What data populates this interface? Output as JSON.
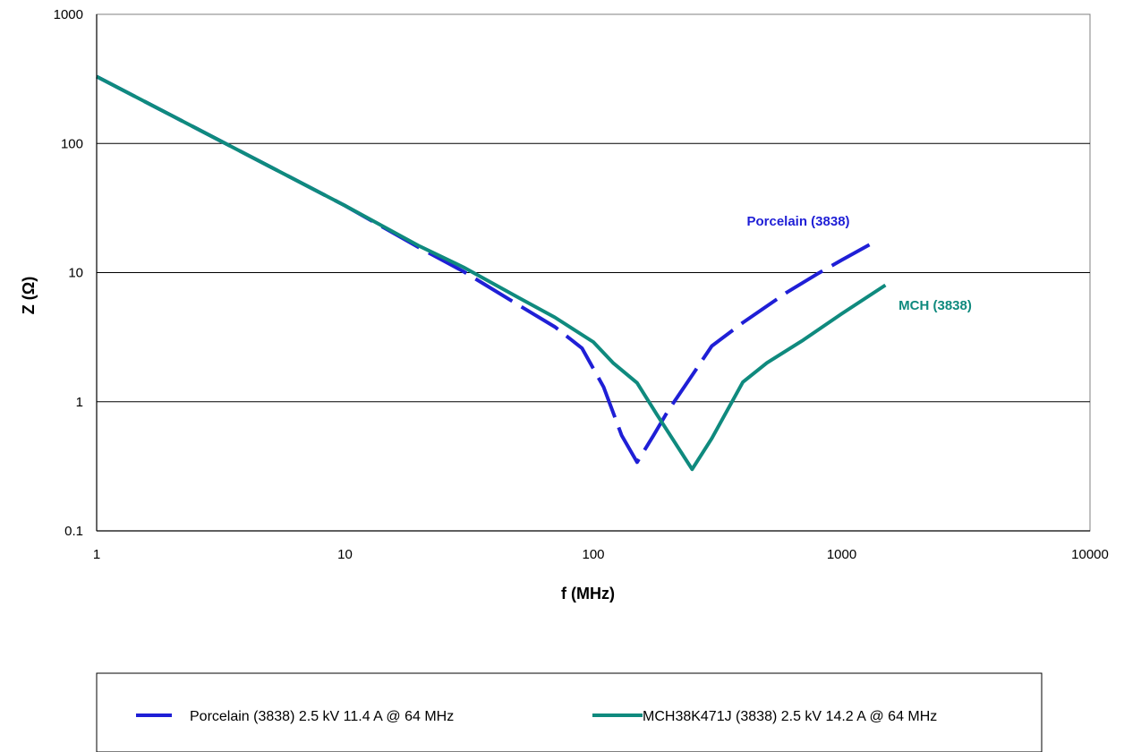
{
  "chart_data": {
    "type": "line",
    "xscale": "log",
    "yscale": "log",
    "xlim": [
      1,
      10000
    ],
    "ylim": [
      0.1,
      1000
    ],
    "xlabel": "f (MHz)",
    "ylabel": "Z (Ω)",
    "x_ticks": [
      "1",
      "10",
      "100",
      "1000",
      "10000"
    ],
    "y_ticks": [
      "0.1",
      "1",
      "10",
      "100",
      "1000"
    ],
    "grid": "horizontal major lines",
    "legend_position": "bottom",
    "series": [
      {
        "name": "Porcelain (3838) 2.5 kV 11.4 A @ 64 MHz",
        "label": "Porcelain (3838)",
        "color": "#1f1fd6",
        "style": "dashed",
        "points": [
          [
            1,
            330
          ],
          [
            2,
            165
          ],
          [
            3,
            110
          ],
          [
            5,
            66
          ],
          [
            10,
            33
          ],
          [
            20,
            15.5
          ],
          [
            30,
            10.2
          ],
          [
            50,
            5.6
          ],
          [
            70,
            3.8
          ],
          [
            90,
            2.6
          ],
          [
            110,
            1.3
          ],
          [
            130,
            0.55
          ],
          [
            150,
            0.34
          ],
          [
            175,
            0.55
          ],
          [
            200,
            0.85
          ],
          [
            250,
            1.6
          ],
          [
            300,
            2.7
          ],
          [
            400,
            4.1
          ],
          [
            600,
            7.0
          ],
          [
            800,
            9.8
          ],
          [
            1000,
            12.5
          ],
          [
            1300,
            16.5
          ]
        ]
      },
      {
        "name": "MCH38K471J (3838) 2.5 kV 14.2 A @ 64 MHz",
        "label": "MCH (3838)",
        "color": "#0f8a7e",
        "style": "solid",
        "points": [
          [
            1,
            330
          ],
          [
            2,
            165
          ],
          [
            3,
            110
          ],
          [
            5,
            66
          ],
          [
            10,
            33
          ],
          [
            20,
            16
          ],
          [
            30,
            11
          ],
          [
            50,
            6.4
          ],
          [
            70,
            4.5
          ],
          [
            100,
            2.9
          ],
          [
            120,
            2.0
          ],
          [
            150,
            1.4
          ],
          [
            180,
            0.8
          ],
          [
            250,
            0.3
          ],
          [
            300,
            0.52
          ],
          [
            400,
            1.42
          ],
          [
            500,
            2.0
          ],
          [
            700,
            3.0
          ],
          [
            1000,
            4.8
          ],
          [
            1500,
            8.0
          ]
        ]
      }
    ]
  }
}
